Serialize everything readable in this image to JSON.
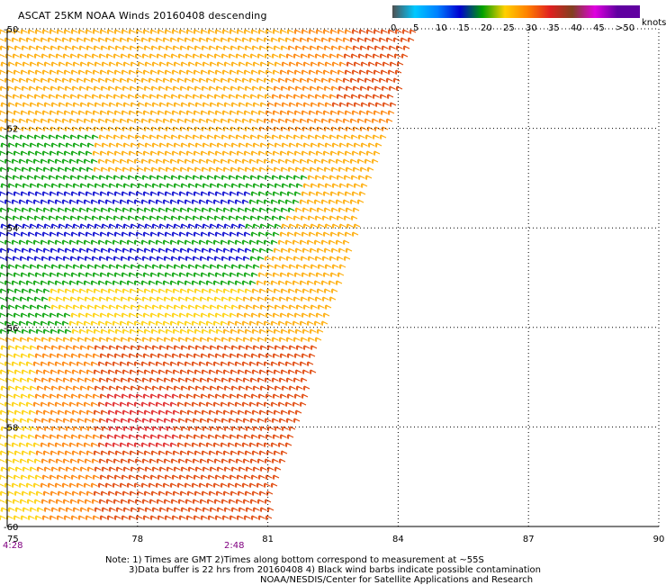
{
  "title": "ASCAT 25KM NOAA Winds 20160408 descending",
  "legend": {
    "stops": [
      {
        "label": "0",
        "color": "#505050"
      },
      {
        "label": "5",
        "color": "#00c8ff"
      },
      {
        "label": "10",
        "color": "#0080ff"
      },
      {
        "label": "15",
        "color": "#0000d0"
      },
      {
        "label": "20",
        "color": "#00a000"
      },
      {
        "label": "25",
        "color": "#ffd000"
      },
      {
        "label": "30",
        "color": "#ff8000"
      },
      {
        "label": "35",
        "color": "#e02020"
      },
      {
        "label": "40",
        "color": "#804020"
      },
      {
        "label": "45",
        "color": "#e000e0"
      },
      {
        "label": ">50",
        "color": "#6000a0"
      }
    ],
    "unit": "knots"
  },
  "axes": {
    "lat_labels": [
      "-50",
      "-52",
      "-54",
      "-56",
      "-58",
      "-60"
    ],
    "lon_labels": [
      "75",
      "78",
      "81",
      "84",
      "87",
      "90"
    ]
  },
  "times": {
    "left": "4:28",
    "middle": "2:48"
  },
  "notes": [
    "Note: 1) Times are GMT 2)Times along bottom correspond to measurement at ~55S",
    "3)Data buffer is 22 hrs from 20160408 4) Black wind barbs indicate possible contamination",
    "NOAA/NESDIS/Center for Satellite Applications and Research"
  ],
  "colors": {
    "calm": "#ffd000",
    "light": "#ffaa00",
    "moderate": "#ff8000",
    "strong": "#e04000",
    "gale": "#e02020",
    "green": "#00a000",
    "blue": "#0000d0",
    "grid": "#000000"
  }
}
